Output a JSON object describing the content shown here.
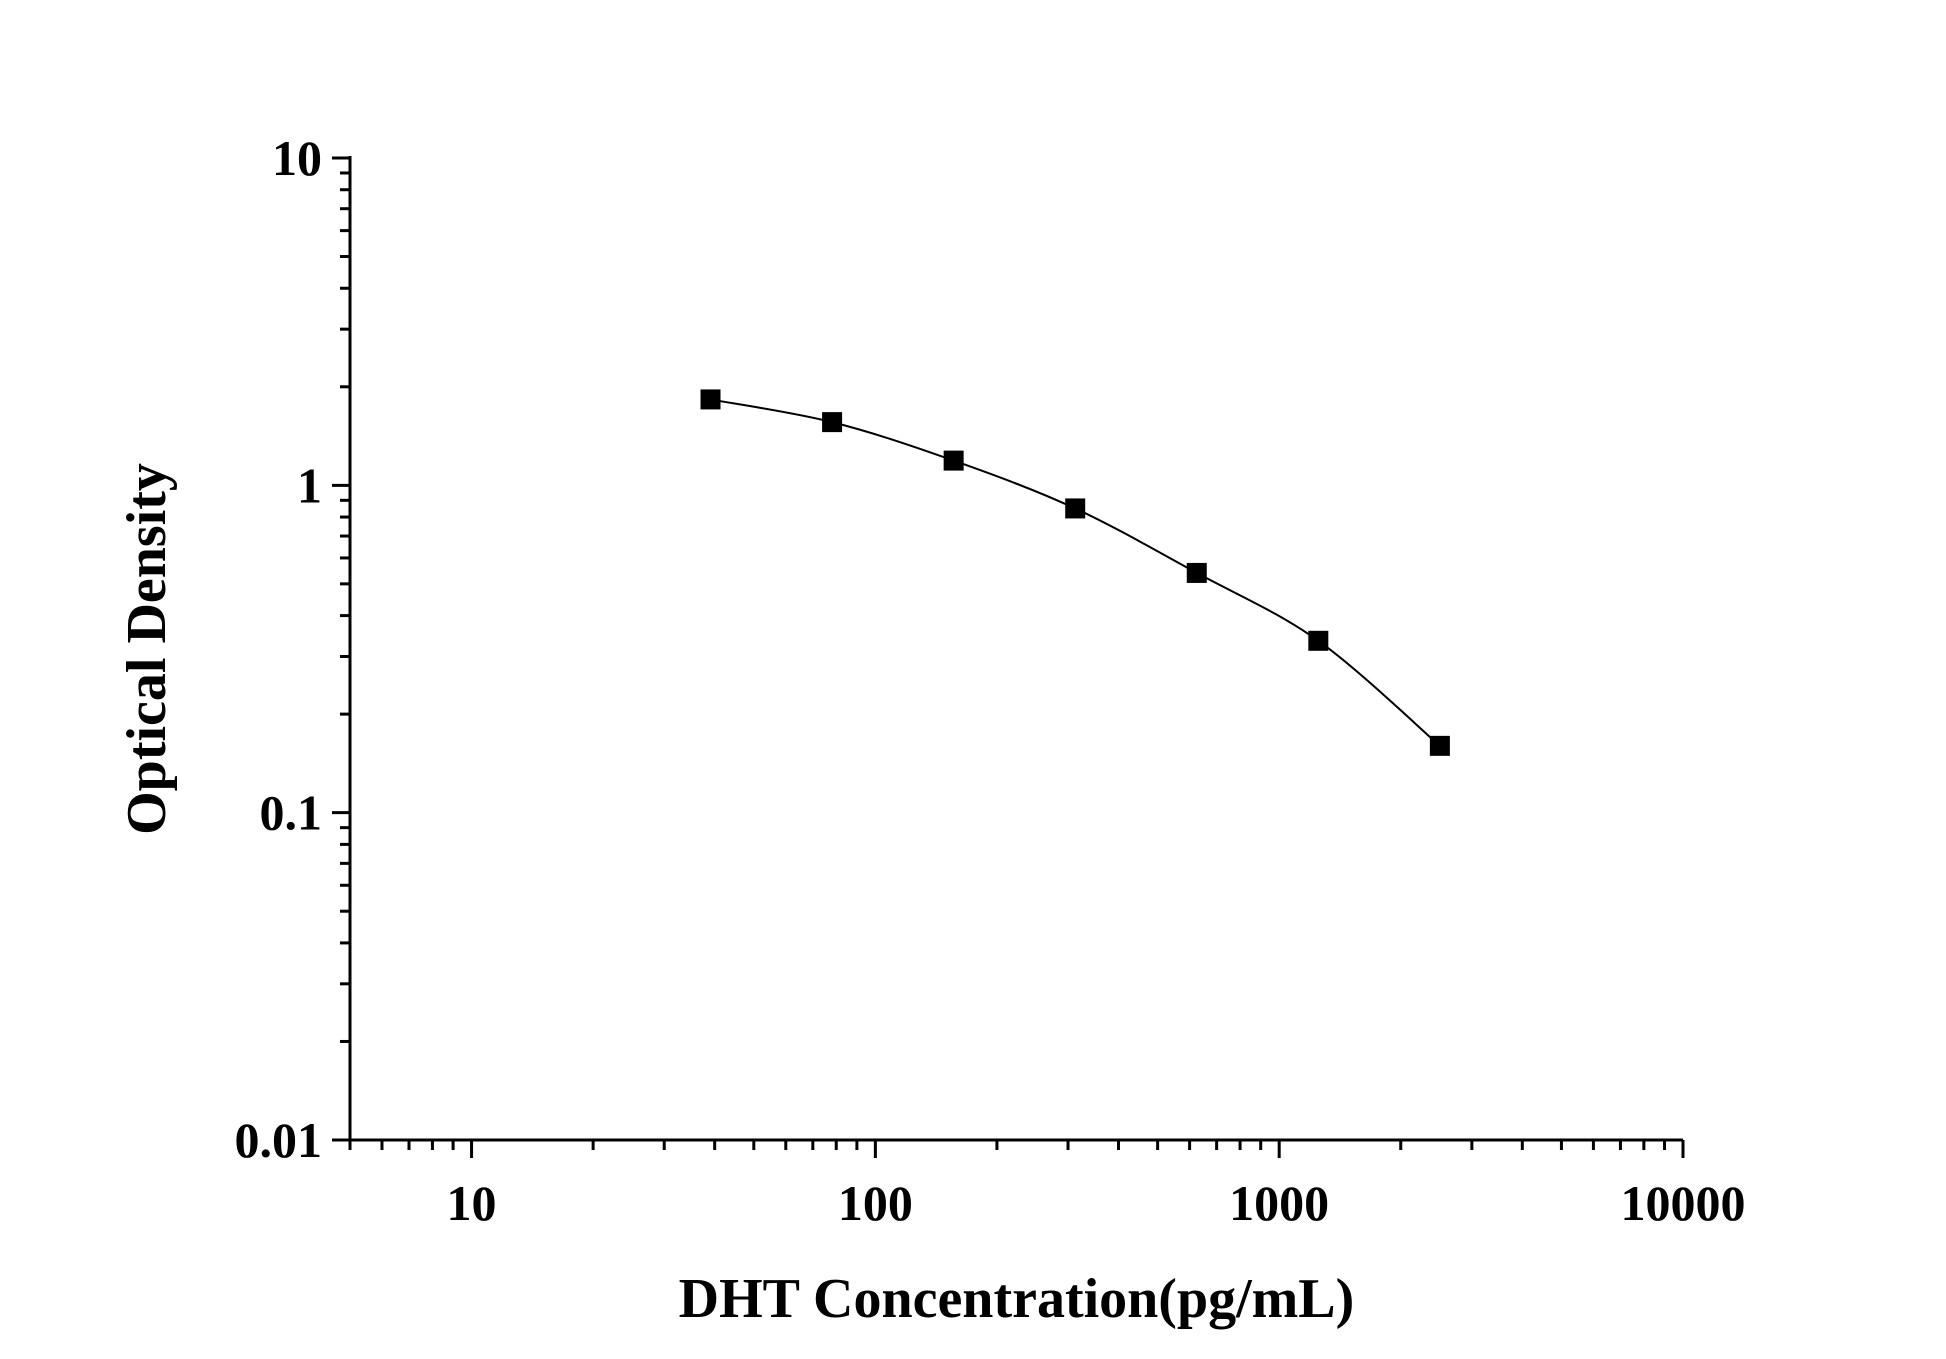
{
  "chart_data": {
    "type": "scatter",
    "title": "",
    "xlabel": "DHT Concentration(pg/mL)",
    "ylabel": "Optical Density",
    "x_scale": "log",
    "y_scale": "log",
    "xlim": [
      5,
      10000
    ],
    "ylim": [
      0.01,
      10
    ],
    "x_ticks": [
      10,
      100,
      1000,
      10000
    ],
    "x_tick_labels": [
      "10",
      "100",
      "1000",
      "10000"
    ],
    "y_ticks": [
      0.01,
      0.1,
      1,
      10
    ],
    "y_tick_labels": [
      "0.01",
      "0.1",
      "1",
      "10"
    ],
    "grid": false,
    "legend": "none",
    "marker": "filled-square",
    "connecting_line": "smooth",
    "color": "#000000",
    "series": [
      {
        "x": [
          39.06,
          78.13,
          156.25,
          312.5,
          625,
          1250,
          2500
        ],
        "y": [
          1.83,
          1.56,
          1.19,
          0.85,
          0.54,
          0.335,
          0.16
        ]
      }
    ]
  }
}
